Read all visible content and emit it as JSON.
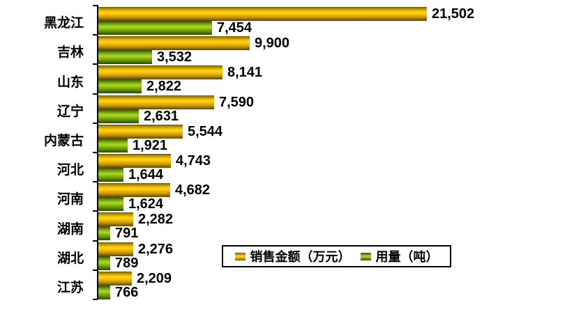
{
  "chart_data": {
    "type": "bar",
    "orientation": "horizontal",
    "title": "",
    "xlabel": "",
    "ylabel": "",
    "xlim": [
      0,
      21502
    ],
    "grid": false,
    "legend_position": "bottom-center-boxed",
    "categories": [
      "黑龙江",
      "吉林",
      "山东",
      "辽宁",
      "内蒙古",
      "河北",
      "河南",
      "湖南",
      "湖北",
      "江苏"
    ],
    "series": [
      {
        "name": "销售金额（万元）",
        "key": "sales",
        "values": [
          21502,
          9900,
          8141,
          7590,
          5544,
          4743,
          4682,
          2282,
          2276,
          2209
        ],
        "labels": [
          "21,502",
          "9,900",
          "8,141",
          "7,590",
          "5,544",
          "4,743",
          "4,682",
          "2,282",
          "2,276",
          "2,209"
        ]
      },
      {
        "name": "用量（吨）",
        "key": "usage",
        "values": [
          7454,
          3532,
          2822,
          2631,
          1921,
          1644,
          1624,
          791,
          789,
          766
        ],
        "labels": [
          "7,454",
          "3,532",
          "2,822",
          "2,631",
          "1,921",
          "1,644",
          "1,624",
          "791",
          "789",
          "766"
        ]
      }
    ]
  },
  "legend": {
    "items": [
      {
        "label": "销售金额（万元）",
        "swatch": "sales"
      },
      {
        "label": "用量（吨）",
        "swatch": "usage"
      }
    ]
  },
  "colors": {
    "sales_bright": "#ffd422",
    "sales_dark": "#564300",
    "usage_bright": "#a8d633",
    "usage_dark": "#2e4500",
    "axis": "#000000",
    "text": "#000000",
    "legend_border": "#000000",
    "background": "#ffffff"
  }
}
